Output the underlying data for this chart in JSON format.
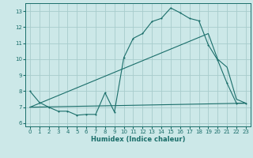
{
  "xlabel": "Humidex (Indice chaleur)",
  "xlim": [
    -0.5,
    23.5
  ],
  "ylim": [
    5.8,
    13.5
  ],
  "yticks": [
    6,
    7,
    8,
    9,
    10,
    11,
    12,
    13
  ],
  "xticks": [
    0,
    1,
    2,
    3,
    4,
    5,
    6,
    7,
    8,
    9,
    10,
    11,
    12,
    13,
    14,
    15,
    16,
    17,
    18,
    19,
    20,
    21,
    22,
    23
  ],
  "bg_color": "#cce8e8",
  "grid_color": "#a8cccc",
  "line_color": "#1a6e6a",
  "line1_x": [
    0,
    1,
    2,
    3,
    4,
    5,
    6,
    7,
    8,
    9,
    10,
    11,
    12,
    13,
    14,
    15,
    16,
    17,
    18,
    19,
    20,
    21,
    22,
    23
  ],
  "line1_y": [
    8.0,
    7.3,
    7.0,
    6.75,
    6.75,
    6.5,
    6.55,
    6.55,
    7.9,
    6.7,
    10.1,
    11.3,
    11.6,
    12.35,
    12.55,
    13.2,
    12.9,
    12.55,
    12.4,
    10.9,
    9.95,
    8.5,
    7.25,
    7.25
  ],
  "line2_x": [
    0,
    19,
    20,
    21,
    22,
    23
  ],
  "line2_y": [
    7.0,
    11.6,
    10.0,
    9.5,
    7.5,
    7.25
  ],
  "line3_x": [
    0,
    23
  ],
  "line3_y": [
    7.0,
    7.25
  ]
}
